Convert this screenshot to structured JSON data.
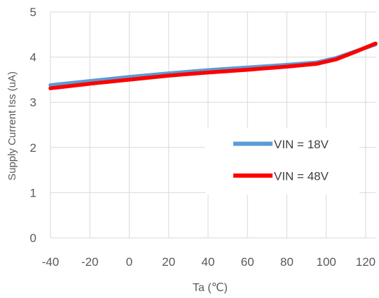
{
  "chart_data": {
    "type": "line",
    "xlabel": "Ta (℃)",
    "ylabel": "Supply Current Iss (uA)",
    "xlim": [
      -40,
      125
    ],
    "ylim": [
      0,
      5
    ],
    "x_ticks": [
      "-40",
      "-20",
      "0",
      "20",
      "40",
      "60",
      "80",
      "100",
      "120"
    ],
    "y_ticks": [
      "0",
      "1",
      "2",
      "3",
      "4",
      "5"
    ],
    "grid": true,
    "legend_position": "right",
    "series": [
      {
        "name": "VIN = 18V",
        "color": "#5B9BD5",
        "x": [
          -40,
          -20,
          0,
          20,
          40,
          60,
          80,
          95,
          105,
          115,
          125
        ],
        "y": [
          3.38,
          3.47,
          3.56,
          3.64,
          3.71,
          3.77,
          3.83,
          3.88,
          3.98,
          4.13,
          4.28
        ]
      },
      {
        "name": "VIN = 48V",
        "color": "#FF0000",
        "x": [
          -40,
          -20,
          0,
          20,
          40,
          60,
          80,
          95,
          105,
          115,
          125
        ],
        "y": [
          3.31,
          3.41,
          3.5,
          3.59,
          3.66,
          3.72,
          3.79,
          3.85,
          3.95,
          4.12,
          4.3
        ]
      }
    ]
  }
}
